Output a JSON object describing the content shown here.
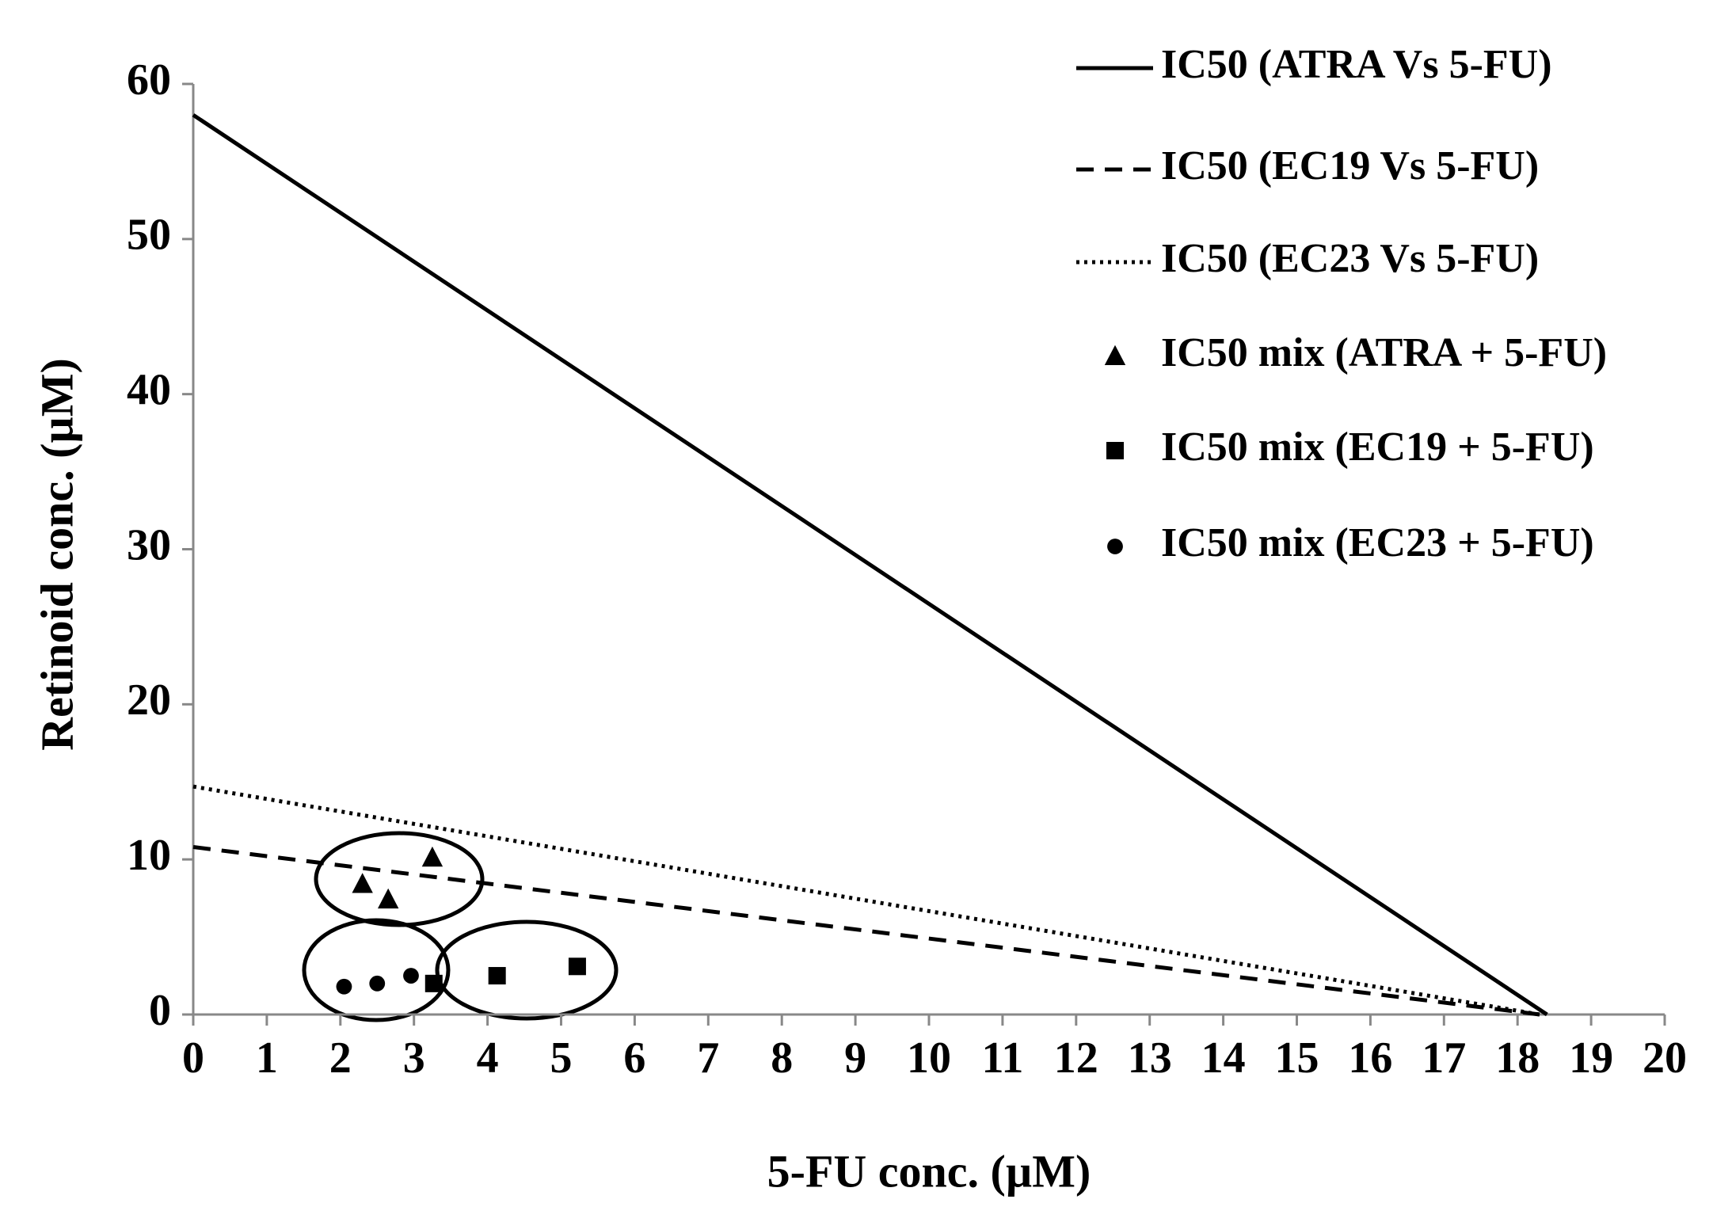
{
  "chart_data": {
    "type": "scatter",
    "x_label": "5-FU conc. (µM)",
    "y_label": "Retinoid  conc. (µM)",
    "xlim": [
      0,
      20
    ],
    "xticks": [
      0,
      1,
      2,
      3,
      4,
      5,
      6,
      7,
      8,
      9,
      10,
      11,
      12,
      13,
      14,
      15,
      16,
      17,
      18,
      19,
      20
    ],
    "ylim": [
      0,
      60
    ],
    "yticks": [
      0,
      10,
      20,
      30,
      40,
      50,
      60
    ],
    "grid": false,
    "legend": "top-right",
    "series": [
      {
        "name": "IC50 (ATRA Vs 5-FU)",
        "color": "#000000",
        "line": "solid",
        "x": [
          0,
          18.4
        ],
        "values": [
          58,
          0
        ]
      },
      {
        "name": "IC50 (EC19 Vs 5-FU)",
        "color": "#000000",
        "line": "dashed",
        "x": [
          0,
          18.3
        ],
        "values": [
          10.8,
          0
        ]
      },
      {
        "name": "IC50 (EC23 Vs 5-FU)",
        "color": "#000000",
        "line": "dotted",
        "x": [
          0,
          18.3
        ],
        "values": [
          14.7,
          0
        ]
      },
      {
        "name": "IC50 mix (ATRA + 5-FU)",
        "color": "#000000",
        "marker": "triangle",
        "x": [
          2.3,
          2.65,
          3.25
        ],
        "values": [
          8.4,
          7.4,
          10.1
        ]
      },
      {
        "name": "IC50 mix (EC19 + 5-FU)",
        "color": "#000000",
        "marker": "square",
        "x": [
          3.27,
          4.13,
          5.22
        ],
        "values": [
          2.0,
          2.5,
          3.1
        ]
      },
      {
        "name": "IC50 mix (EC23 + 5-FU)",
        "color": "#000000",
        "marker": "circle",
        "x": [
          2.05,
          2.5,
          2.96
        ],
        "values": [
          1.8,
          2.0,
          2.5
        ]
      }
    ]
  }
}
